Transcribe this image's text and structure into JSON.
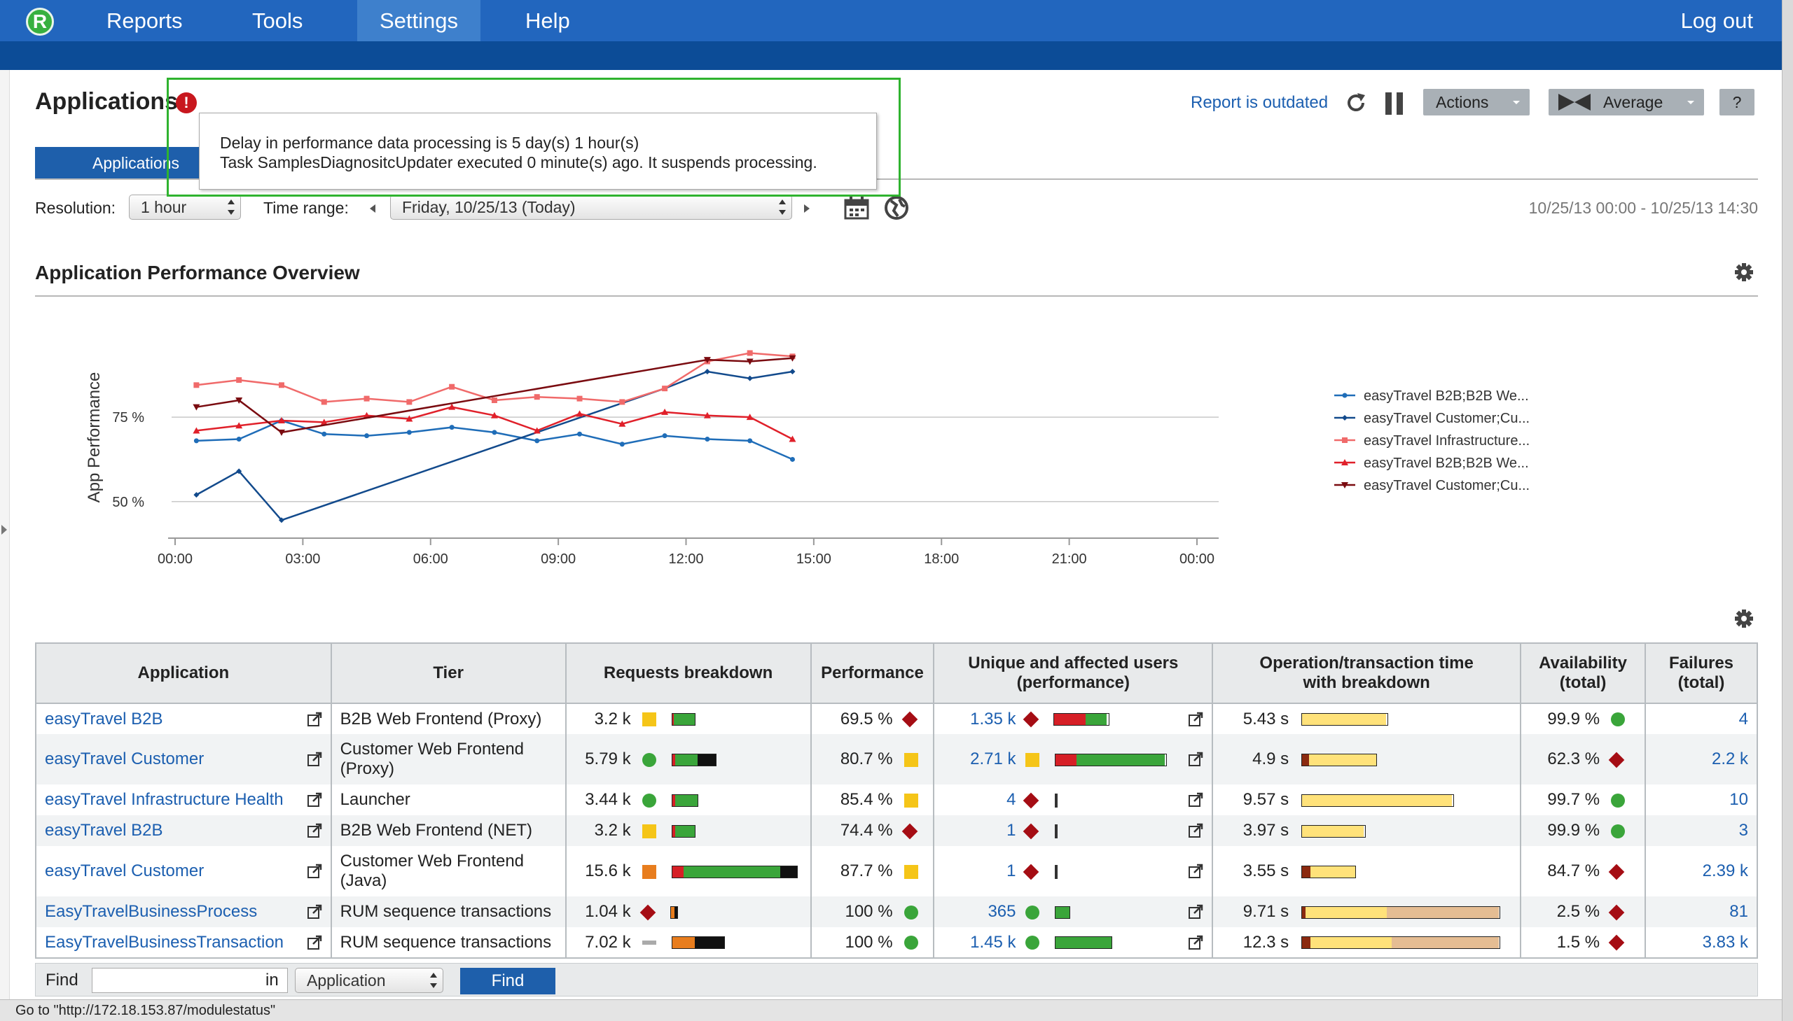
{
  "nav": {
    "logo": "R",
    "items": [
      {
        "label": "Reports"
      },
      {
        "label": "Tools"
      },
      {
        "label": "Settings"
      },
      {
        "label": "Help"
      }
    ],
    "active": "Settings",
    "logout": "Log out"
  },
  "header": {
    "title": "Applications",
    "alert": "!",
    "report_status": "Report is outdated",
    "actions_label": "Actions",
    "average_label": "Average",
    "help_label": "?"
  },
  "tab": {
    "label": "Applications"
  },
  "tooltip": {
    "line1": "Delay in performance data processing is 5 day(s) 1 hour(s)",
    "line2": "Task SamplesDiagnositcUpdater executed 0 minute(s) ago. It suspends processing."
  },
  "filters": {
    "resolution_label": "Resolution:",
    "resolution_value": "1 hour",
    "time_range_label": "Time range:",
    "time_range_value": "Friday, 10/25/13 (Today)",
    "range_text": "10/25/13 00:00 - 10/25/13 14:30"
  },
  "section": {
    "title": "Application Performance Overview"
  },
  "colors": {
    "nav": "#2266be",
    "subnav": "#0c4c97",
    "green": "#3aa53a",
    "red": "#d61f26",
    "yellow": "#f5c518",
    "orange": "#e87d1e",
    "darkred": "#a50d14",
    "link": "#1c5fb0"
  },
  "chart_data": {
    "type": "line",
    "ylabel": "App Performance",
    "x_ticks": [
      "00:00",
      "03:00",
      "06:00",
      "09:00",
      "12:00",
      "15:00",
      "18:00",
      "21:00",
      "00:00"
    ],
    "y_ticks": [
      "75 %",
      "50 %"
    ],
    "y_tick_values": [
      75,
      50
    ],
    "ylim": [
      40,
      97
    ],
    "x_hours_range": [
      0,
      24
    ],
    "legend_position": "right",
    "series": [
      {
        "name": "easyTravel B2B;B2B We...",
        "color": "#1f6db8",
        "marker": "circle",
        "x": [
          0.5,
          1.5,
          2.5,
          3.5,
          4.5,
          5.5,
          6.5,
          7.5,
          8.5,
          9.5,
          10.5,
          11.5,
          12.5,
          13.5,
          14.5
        ],
        "y": [
          68,
          68.5,
          74,
          70,
          69.5,
          70.5,
          72,
          70.5,
          68,
          70,
          67,
          69.5,
          68.5,
          68,
          62.5
        ]
      },
      {
        "name": "easyTravel Customer;Cu...",
        "color": "#124a8c",
        "marker": "diamond",
        "x": [
          0.5,
          1.5,
          2.5,
          11.5,
          12.5,
          13.5,
          14.5
        ],
        "y": [
          52,
          59,
          44.5,
          83.5,
          88.5,
          86.5,
          88.5
        ]
      },
      {
        "name": "easyTravel Infrastructure...",
        "color": "#f06a6a",
        "marker": "square",
        "x": [
          0.5,
          1.5,
          2.5,
          3.5,
          4.5,
          5.5,
          6.5,
          7.5,
          8.5,
          9.5,
          10.5,
          11.5,
          12.5,
          13.5,
          14.5
        ],
        "y": [
          84.5,
          86,
          84.5,
          79.5,
          80.5,
          79.5,
          84,
          80,
          81,
          80.5,
          79.5,
          83.5,
          91.5,
          94,
          93
        ]
      },
      {
        "name": "easyTravel B2B;B2B We...",
        "color": "#e0202a",
        "marker": "triangle",
        "x": [
          0.5,
          1.5,
          2.5,
          3.5,
          4.5,
          5.5,
          6.5,
          7.5,
          8.5,
          9.5,
          10.5,
          11.5,
          12.5,
          13.5,
          14.5
        ],
        "y": [
          71,
          72.5,
          74,
          73.5,
          75.5,
          74.5,
          78,
          75.5,
          71,
          76,
          73,
          76.5,
          75.5,
          75,
          68.5
        ]
      },
      {
        "name": "easyTravel Customer;Cu...",
        "color": "#7a0b10",
        "marker": "triangle-down",
        "x": [
          0.5,
          1.5,
          2.5,
          12.5,
          13.5,
          14.5
        ],
        "y": [
          78,
          80,
          70.5,
          92,
          91.5,
          92.5
        ]
      }
    ]
  },
  "table": {
    "columns": [
      "Application",
      "Tier",
      "Requests breakdown",
      "Performance",
      "Unique and affected users (performance)",
      "Operation/transaction time with breakdown",
      "Availability (total)",
      "Failures (total)"
    ],
    "rows": [
      {
        "app": "easyTravel B2B",
        "tier": "B2B Web Frontend (Proxy)",
        "requests": "3.2 k",
        "req_ind": "yellow-square",
        "performance": "69.5 %",
        "perf_ind": "red-diamond",
        "users": "1.35 k",
        "users_ind": "red-diamond",
        "op_time": "5.43 s",
        "availability": "99.9 %",
        "avail_ind": "green-circle",
        "failures": "4"
      },
      {
        "app": "easyTravel Customer",
        "tier": "Customer Web Frontend (Proxy)",
        "requests": "5.79 k",
        "req_ind": "green-circle",
        "performance": "80.7 %",
        "perf_ind": "yellow-square",
        "users": "2.71 k",
        "users_ind": "yellow-square",
        "op_time": "4.9 s",
        "availability": "62.3 %",
        "avail_ind": "red-diamond",
        "failures": "2.2 k"
      },
      {
        "app": "easyTravel Infrastructure Health",
        "tier": "Launcher",
        "requests": "3.44 k",
        "req_ind": "green-circle",
        "performance": "85.4 %",
        "perf_ind": "yellow-square",
        "users": "4",
        "users_ind": "red-diamond",
        "op_time": "9.57 s",
        "availability": "99.7 %",
        "avail_ind": "green-circle",
        "failures": "10"
      },
      {
        "app": "easyTravel B2B",
        "tier": "B2B Web Frontend (NET)",
        "requests": "3.2 k",
        "req_ind": "yellow-square",
        "performance": "74.4 %",
        "perf_ind": "red-diamond",
        "users": "1",
        "users_ind": "red-diamond",
        "op_time": "3.97 s",
        "availability": "99.9 %",
        "avail_ind": "green-circle",
        "failures": "3"
      },
      {
        "app": "easyTravel Customer",
        "tier": "Customer Web Frontend (Java)",
        "requests": "15.6 k",
        "req_ind": "orange-square",
        "performance": "87.7 %",
        "perf_ind": "yellow-square",
        "users": "1",
        "users_ind": "red-diamond",
        "op_time": "3.55 s",
        "availability": "84.7 %",
        "avail_ind": "red-diamond",
        "failures": "2.39 k"
      },
      {
        "app": "EasyTravelBusinessProcess",
        "tier": "RUM sequence transactions",
        "requests": "1.04 k",
        "req_ind": "red-diamond",
        "performance": "100 %",
        "perf_ind": "green-circle",
        "users": "365",
        "users_ind": "green-circle",
        "op_time": "9.71 s",
        "availability": "2.5 %",
        "avail_ind": "red-diamond",
        "failures": "81"
      },
      {
        "app": "EasyTravelBusinessTransaction",
        "tier": "RUM sequence transactions",
        "requests": "7.02 k",
        "req_ind": "gray-dash",
        "performance": "100 %",
        "perf_ind": "green-circle",
        "users": "1.45 k",
        "users_ind": "green-circle",
        "op_time": "12.3 s",
        "availability": "1.5 %",
        "avail_ind": "red-diamond",
        "failures": "3.83 k"
      }
    ]
  },
  "find": {
    "label": "Find",
    "in_label": "in",
    "scope_value": "Application",
    "button": "Find"
  },
  "statusbar": {
    "text": "Go to \"http://172.18.153.87/modulestatus\""
  }
}
